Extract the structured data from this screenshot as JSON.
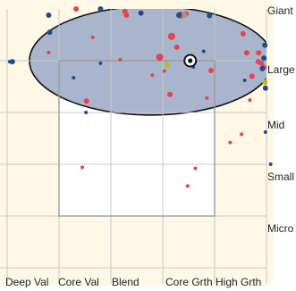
{
  "chart_data": {
    "type": "scatter",
    "title": "",
    "xlabel": "",
    "ylabel": "",
    "x_categories": [
      "Deep Val",
      "Core Val",
      "Blend",
      "Core Grth",
      "High Grth"
    ],
    "y_categories": [
      "Giant",
      "Large",
      "Mid",
      "Small",
      "Micro"
    ],
    "grid": true,
    "highlight_region": {
      "shape": "ellipse",
      "center": [
        2.78,
        1.0
      ],
      "radius_x": 2.35,
      "radius_y": 1.05
    },
    "center_marker": {
      "x": 3.53,
      "y": 1.0
    },
    "series": [
      {
        "color": "#e8424c",
        "points": [
          {
            "x": 1.33,
            "y": 0.0,
            "size": 3
          },
          {
            "x": 2.27,
            "y": 0.05,
            "size": 3
          },
          {
            "x": 2.3,
            "y": 0.12,
            "size": 3
          },
          {
            "x": 3.45,
            "y": 0.1,
            "size": 3
          },
          {
            "x": 3.34,
            "y": 0.12,
            "size": 4
          },
          {
            "x": 3.17,
            "y": 0.53,
            "size": 4
          },
          {
            "x": 3.27,
            "y": 0.74,
            "size": 3
          },
          {
            "x": 2.18,
            "y": 0.98,
            "size": 2
          },
          {
            "x": 2.94,
            "y": 0.93,
            "size": 4
          },
          {
            "x": 3.03,
            "y": 1.2,
            "size": 2
          },
          {
            "x": 3.93,
            "y": 1.19,
            "size": 3
          },
          {
            "x": 4.62,
            "y": 0.85,
            "size": 3
          },
          {
            "x": 4.55,
            "y": 0.48,
            "size": 3
          },
          {
            "x": 4.72,
            "y": 1.3,
            "size": 3
          },
          {
            "x": 4.84,
            "y": 1.02,
            "size": 3
          },
          {
            "x": 4.68,
            "y": 1.76,
            "size": 2
          },
          {
            "x": 3.14,
            "y": 1.65,
            "size": 3
          },
          {
            "x": 2.8,
            "y": 1.28,
            "size": 2
          },
          {
            "x": 1.53,
            "y": 1.78,
            "size": 3
          },
          {
            "x": 4.52,
            "y": 2.42,
            "size": 2
          },
          {
            "x": 4.3,
            "y": 2.58,
            "size": 2
          },
          {
            "x": 0.8,
            "y": 0.84,
            "size": 2
          },
          {
            "x": 1.45,
            "y": 3.06,
            "size": 2
          },
          {
            "x": 3.85,
            "y": 1.72,
            "size": 2
          },
          {
            "x": 3.48,
            "y": 3.42,
            "size": 2
          },
          {
            "x": 3.63,
            "y": 3.08,
            "size": 2
          },
          {
            "x": 4.95,
            "y": 1.13,
            "size": 3
          },
          {
            "x": 4.85,
            "y": 0.85,
            "size": 3
          },
          {
            "x": 4.9,
            "y": 1.05,
            "size": 3
          },
          {
            "x": 1.65,
            "y": 0.55,
            "size": 2
          }
        ]
      },
      {
        "color": "#1f4e82",
        "points": [
          {
            "x": 0.8,
            "y": 0.12,
            "size": 3
          },
          {
            "x": 0.82,
            "y": 0.45,
            "size": 3
          },
          {
            "x": 1.28,
            "y": 1.33,
            "size": 2
          },
          {
            "x": 1.8,
            "y": 0.0,
            "size": 3
          },
          {
            "x": 2.58,
            "y": 0.08,
            "size": 3
          },
          {
            "x": 3.31,
            "y": 0.12,
            "size": 3
          },
          {
            "x": 3.9,
            "y": 0.13,
            "size": 3
          },
          {
            "x": 3.79,
            "y": 0.82,
            "size": 2
          },
          {
            "x": 4.58,
            "y": 1.38,
            "size": 2
          },
          {
            "x": 4.95,
            "y": 0.95,
            "size": 3
          },
          {
            "x": 4.92,
            "y": 1.15,
            "size": 3
          },
          {
            "x": 4.98,
            "y": 2.38,
            "size": 2
          },
          {
            "x": 5.08,
            "y": 3.0,
            "size": 2
          },
          {
            "x": 3.59,
            "y": 1.12,
            "size": 2
          },
          {
            "x": 1.8,
            "y": 1.05,
            "size": 2
          },
          {
            "x": 1.52,
            "y": 2.0,
            "size": 2
          },
          {
            "x": 0.1,
            "y": 1.02,
            "size": 3
          },
          {
            "x": 0.05,
            "y": 1.02,
            "size": 2
          },
          {
            "x": 4.98,
            "y": 1.53,
            "size": 3
          },
          {
            "x": 4.97,
            "y": 0.7,
            "size": 3
          }
        ]
      },
      {
        "color": "#c4b818",
        "points": [
          {
            "x": 3.08,
            "y": 1.07,
            "size": 3
          },
          {
            "x": 4.97,
            "y": 1.42,
            "size": 3
          }
        ]
      },
      {
        "color": "#9a9a9a",
        "points": [
          {
            "x": 3.42,
            "y": 0.12,
            "size": 3
          }
        ]
      }
    ]
  }
}
